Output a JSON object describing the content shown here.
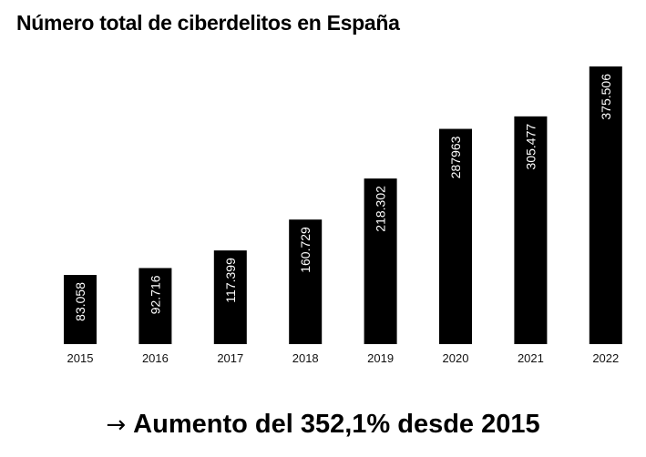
{
  "chart_data": {
    "type": "bar",
    "title": "Número total de ciberdelitos en España",
    "xlabel": "",
    "ylabel": "",
    "categories": [
      "2015",
      "2016",
      "2017",
      "2018",
      "2019",
      "2020",
      "2021",
      "2022"
    ],
    "values": [
      83058,
      92716,
      117399,
      160729,
      218302,
      287963,
      305477,
      375506
    ],
    "data_labels": [
      "83.058",
      "92.716",
      "117.399",
      "160.729",
      "218.302",
      "287963",
      "305.477",
      "375.506"
    ],
    "grid": false,
    "legend": "none",
    "bar_color": "#000000",
    "label_color": "#ffffff",
    "annotation": "Aumento del 352,1% desde 2015"
  },
  "footer": {
    "arrow_icon": "right-arrow-icon",
    "text": "Aumento del 352,1% desde 2015"
  }
}
